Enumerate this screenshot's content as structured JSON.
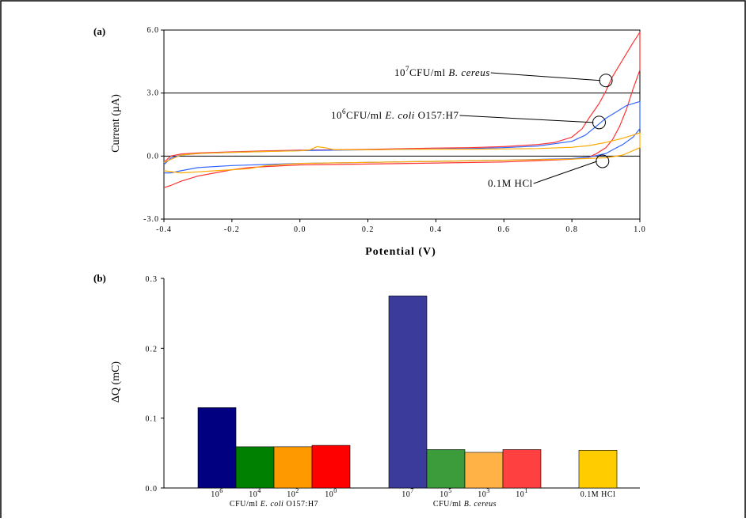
{
  "chart_data": [
    {
      "panel_label": "(a)",
      "type": "line",
      "xlabel": "Potential (V)",
      "ylabel": "Current (µA)",
      "xlim": [
        -0.4,
        1.0
      ],
      "ylim": [
        -3.0,
        6.0
      ],
      "x_ticks": [
        "-0.4",
        "-0.2",
        "0.0",
        "0.2",
        "0.4",
        "0.6",
        "0.8",
        "1.0"
      ],
      "y_ticks": [
        "6.0",
        "3.0",
        "0.0",
        "-3.0"
      ],
      "reference_lines_y": [
        3.0,
        0.0
      ],
      "annotations": [
        {
          "exp": "7",
          "prefix": "10",
          "text": "CFU/ml",
          "italic": "B. cereus",
          "rest": "",
          "target": [
            0.9,
            3.6
          ]
        },
        {
          "exp": "6",
          "prefix": "10",
          "text": "CFU/ml",
          "italic": "E. coli",
          "rest": "O157:H7",
          "target": [
            0.88,
            1.6
          ]
        },
        {
          "exp": "",
          "prefix": "",
          "text": "0.1M HCl",
          "italic": "",
          "rest": "",
          "target": [
            0.89,
            -0.25
          ]
        }
      ],
      "series": [
        {
          "color": "#ff3333",
          "forward": [
            [
              -0.4,
              -0.3
            ],
            [
              -0.38,
              0.0
            ],
            [
              -0.35,
              0.1
            ],
            [
              -0.3,
              0.15
            ],
            [
              -0.2,
              0.2
            ],
            [
              -0.1,
              0.25
            ],
            [
              0.0,
              0.28
            ],
            [
              0.1,
              0.3
            ],
            [
              0.2,
              0.32
            ],
            [
              0.3,
              0.35
            ],
            [
              0.4,
              0.38
            ],
            [
              0.5,
              0.4
            ],
            [
              0.6,
              0.45
            ],
            [
              0.7,
              0.55
            ],
            [
              0.75,
              0.65
            ],
            [
              0.8,
              0.9
            ],
            [
              0.83,
              1.3
            ],
            [
              0.85,
              1.8
            ],
            [
              0.88,
              2.5
            ],
            [
              0.9,
              3.1
            ],
            [
              0.92,
              3.8
            ],
            [
              0.95,
              4.6
            ],
            [
              0.98,
              5.4
            ],
            [
              1.0,
              5.9
            ]
          ],
          "reverse": [
            [
              1.0,
              4.1
            ],
            [
              0.98,
              3.2
            ],
            [
              0.96,
              2.2
            ],
            [
              0.94,
              1.4
            ],
            [
              0.92,
              0.8
            ],
            [
              0.9,
              0.4
            ],
            [
              0.87,
              0.1
            ],
            [
              0.85,
              -0.05
            ],
            [
              0.8,
              -0.15
            ],
            [
              0.7,
              -0.22
            ],
            [
              0.6,
              -0.28
            ],
            [
              0.4,
              -0.33
            ],
            [
              0.2,
              -0.38
            ],
            [
              0.0,
              -0.42
            ],
            [
              -0.1,
              -0.5
            ],
            [
              -0.15,
              -0.55
            ],
            [
              -0.2,
              -0.65
            ],
            [
              -0.25,
              -0.8
            ],
            [
              -0.3,
              -0.95
            ],
            [
              -0.35,
              -1.2
            ],
            [
              -0.38,
              -1.4
            ],
            [
              -0.4,
              -1.5
            ]
          ]
        },
        {
          "color": "#3366ff",
          "forward": [
            [
              -0.4,
              -0.4
            ],
            [
              -0.38,
              -0.1
            ],
            [
              -0.35,
              0.05
            ],
            [
              -0.3,
              0.12
            ],
            [
              -0.2,
              0.18
            ],
            [
              -0.1,
              0.22
            ],
            [
              0.0,
              0.26
            ],
            [
              0.1,
              0.28
            ],
            [
              0.2,
              0.3
            ],
            [
              0.3,
              0.32
            ],
            [
              0.4,
              0.34
            ],
            [
              0.5,
              0.36
            ],
            [
              0.6,
              0.4
            ],
            [
              0.7,
              0.48
            ],
            [
              0.8,
              0.7
            ],
            [
              0.84,
              1.0
            ],
            [
              0.87,
              1.4
            ],
            [
              0.9,
              1.8
            ],
            [
              0.93,
              2.1
            ],
            [
              0.96,
              2.4
            ],
            [
              1.0,
              2.6
            ]
          ],
          "reverse": [
            [
              1.0,
              1.3
            ],
            [
              0.98,
              0.9
            ],
            [
              0.95,
              0.55
            ],
            [
              0.92,
              0.3
            ],
            [
              0.9,
              0.12
            ],
            [
              0.85,
              -0.05
            ],
            [
              0.8,
              -0.12
            ],
            [
              0.6,
              -0.2
            ],
            [
              0.4,
              -0.25
            ],
            [
              0.2,
              -0.3
            ],
            [
              0.0,
              -0.35
            ],
            [
              -0.2,
              -0.45
            ],
            [
              -0.3,
              -0.55
            ],
            [
              -0.35,
              -0.7
            ],
            [
              -0.38,
              -0.8
            ],
            [
              -0.4,
              -0.8
            ]
          ]
        },
        {
          "color": "#ffaa00",
          "forward": [
            [
              -0.4,
              -0.3
            ],
            [
              -0.35,
              0.05
            ],
            [
              -0.3,
              0.12
            ],
            [
              -0.2,
              0.18
            ],
            [
              -0.1,
              0.22
            ],
            [
              0.0,
              0.25
            ],
            [
              0.03,
              0.3
            ],
            [
              0.05,
              0.45
            ],
            [
              0.08,
              0.38
            ],
            [
              0.1,
              0.3
            ],
            [
              0.2,
              0.3
            ],
            [
              0.3,
              0.32
            ],
            [
              0.4,
              0.33
            ],
            [
              0.5,
              0.33
            ],
            [
              0.6,
              0.34
            ],
            [
              0.7,
              0.36
            ],
            [
              0.8,
              0.42
            ],
            [
              0.85,
              0.5
            ],
            [
              0.9,
              0.65
            ],
            [
              0.95,
              0.85
            ],
            [
              1.0,
              1.1
            ]
          ],
          "reverse": [
            [
              1.0,
              0.4
            ],
            [
              0.95,
              0.05
            ],
            [
              0.9,
              -0.08
            ],
            [
              0.8,
              -0.14
            ],
            [
              0.6,
              -0.2
            ],
            [
              0.4,
              -0.25
            ],
            [
              0.2,
              -0.3
            ],
            [
              0.0,
              -0.35
            ],
            [
              -0.1,
              -0.45
            ],
            [
              -0.15,
              -0.6
            ],
            [
              -0.2,
              -0.65
            ],
            [
              -0.25,
              -0.7
            ],
            [
              -0.3,
              -0.75
            ],
            [
              -0.35,
              -0.8
            ],
            [
              -0.4,
              -0.7
            ]
          ]
        }
      ]
    },
    {
      "panel_label": "(b)",
      "type": "bar",
      "ylabel": "ΔQ (mC)",
      "ylim": [
        0.0,
        0.3
      ],
      "y_ticks": [
        "0.3",
        "0.2",
        "0.1",
        "0.0"
      ],
      "groups": [
        {
          "label": "CFU/ml",
          "label_italic": "E. coli",
          "label_rest": "O157:H7",
          "bars": [
            {
              "base": "10",
              "exp": "6",
              "value": 0.115,
              "color": "#000080"
            },
            {
              "base": "10",
              "exp": "4",
              "value": 0.059,
              "color": "#008000"
            },
            {
              "base": "10",
              "exp": "2",
              "value": 0.059,
              "color": "#ff9900"
            },
            {
              "base": "10",
              "exp": "0",
              "value": 0.061,
              "color": "#ff0000"
            }
          ]
        },
        {
          "label": "CFU/ml",
          "label_italic": "B. cereus",
          "label_rest": "",
          "bars": [
            {
              "base": "10",
              "exp": "7",
              "value": 0.275,
              "color": "#3b3b9c"
            },
            {
              "base": "10",
              "exp": "5",
              "value": 0.055,
              "color": "#3c9c3c"
            },
            {
              "base": "10",
              "exp": "3",
              "value": 0.051,
              "color": "#ffb347"
            },
            {
              "base": "10",
              "exp": "1",
              "value": 0.055,
              "color": "#ff4040"
            }
          ]
        },
        {
          "label": "",
          "label_italic": "",
          "label_rest": "",
          "bars": [
            {
              "base": "0.1M HCl",
              "exp": "",
              "value": 0.054,
              "color": "#ffcc00"
            }
          ]
        }
      ]
    }
  ]
}
